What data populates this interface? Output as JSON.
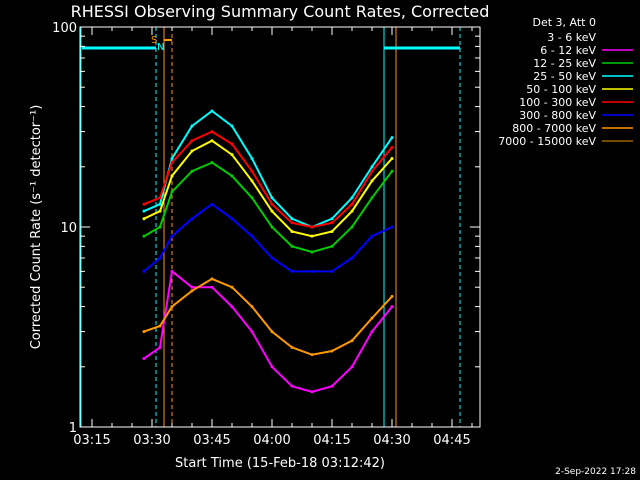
{
  "chart_data": {
    "type": "line",
    "title": "RHESSI Observing Summary Count Rates, Corrected",
    "xlabel": "Start Time (15-Feb-18 03:12:42)",
    "ylabel": "Corrected Count Rate (s⁻¹ detector⁻¹)",
    "yscale": "log",
    "ylim": [
      1,
      100
    ],
    "xlim": [
      "03:12",
      "04:52"
    ],
    "x_ticks": [
      "03:15",
      "03:30",
      "03:45",
      "04:00",
      "04:15",
      "04:30",
      "04:45"
    ],
    "y_ticks": [
      "1",
      "10",
      "100"
    ],
    "legend_header": "Det 3, Att 0",
    "legend_position": "top-right, outside plot",
    "series": [
      {
        "name": "3 - 6 keV",
        "color": "#000000",
        "x": [],
        "y": []
      },
      {
        "name": "6 - 12 keV",
        "color": "#ff00ff",
        "x": [
          "03:28",
          "03:32",
          "03:35",
          "03:40",
          "03:45",
          "03:50",
          "03:55",
          "04:00",
          "04:05",
          "04:10",
          "04:15",
          "04:20",
          "04:25",
          "04:30"
        ],
        "y": [
          2.2,
          2.5,
          6,
          5,
          5,
          4,
          3,
          2.0,
          1.6,
          1.5,
          1.6,
          2.0,
          3,
          4
        ]
      },
      {
        "name": "12 - 25 keV",
        "color": "#00cc00",
        "x": [
          "03:28",
          "03:32",
          "03:35",
          "03:40",
          "03:45",
          "03:50",
          "03:55",
          "04:00",
          "04:05",
          "04:10",
          "04:15",
          "04:20",
          "04:25",
          "04:30"
        ],
        "y": [
          9,
          10,
          15,
          19,
          21,
          18,
          14,
          10,
          8,
          7.5,
          8,
          10,
          14,
          19
        ]
      },
      {
        "name": "25 - 50 keV",
        "color": "#00ffff",
        "x": [
          "03:28",
          "03:32",
          "03:35",
          "03:40",
          "03:45",
          "03:50",
          "03:55",
          "04:00",
          "04:05",
          "04:10",
          "04:15",
          "04:20",
          "04:25",
          "04:30"
        ],
        "y": [
          12,
          13,
          22,
          32,
          38,
          32,
          22,
          14,
          11,
          10,
          11,
          14,
          20,
          28
        ]
      },
      {
        "name": "50 - 100 keV",
        "color": "#ffff00",
        "x": [
          "03:28",
          "03:32",
          "03:35",
          "03:40",
          "03:45",
          "03:50",
          "03:55",
          "04:00",
          "04:05",
          "04:10",
          "04:15",
          "04:20",
          "04:25",
          "04:30"
        ],
        "y": [
          11,
          12,
          18,
          24,
          27,
          23,
          17,
          12,
          9.5,
          9,
          9.5,
          12,
          17,
          22
        ]
      },
      {
        "name": "100 - 300 keV",
        "color": "#ff0000",
        "x": [
          "03:28",
          "03:32",
          "03:35",
          "03:40",
          "03:45",
          "03:50",
          "03:55",
          "04:00",
          "04:05",
          "04:10",
          "04:15",
          "04:20",
          "04:25",
          "04:30"
        ],
        "y": [
          13,
          14,
          21,
          27,
          30,
          26,
          19,
          13,
          10.5,
          10,
          10.5,
          13,
          19,
          25
        ]
      },
      {
        "name": "300 - 800 keV",
        "color": "#0000ff",
        "x": [
          "03:28",
          "03:32",
          "03:35",
          "03:40",
          "03:45",
          "03:50",
          "03:55",
          "04:00",
          "04:05",
          "04:10",
          "04:15",
          "04:20",
          "04:25",
          "04:30"
        ],
        "y": [
          6,
          7,
          9,
          11,
          13,
          11,
          9,
          7,
          6,
          6,
          6,
          7,
          9,
          10
        ]
      },
      {
        "name": "800 - 7000 keV",
        "color": "#ff9900",
        "x": [
          "03:28",
          "03:32",
          "03:35",
          "03:40",
          "03:45",
          "03:50",
          "03:55",
          "04:00",
          "04:05",
          "04:10",
          "04:15",
          "04:20",
          "04:25",
          "04:30"
        ],
        "y": [
          3,
          3.2,
          4,
          4.8,
          5.5,
          5,
          4,
          3,
          2.5,
          2.3,
          2.4,
          2.7,
          3.5,
          4.5
        ]
      },
      {
        "name": "7000 - 15000 keV",
        "color": "#996600",
        "x": [],
        "y": []
      }
    ],
    "annotations": [
      {
        "text": "S",
        "color": "#ff9900"
      },
      {
        "text": "N",
        "color": "#00ffff"
      }
    ]
  },
  "timestamp": "2-Sep-2022 17:28"
}
